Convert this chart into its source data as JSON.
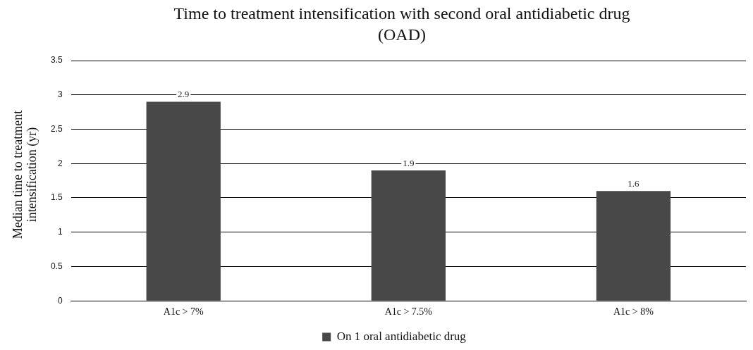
{
  "chart_data": {
    "type": "bar",
    "title": "Time to treatment intensification with second oral antidiabetic drug (OAD)",
    "ylabel": "Median time to treatment intensification (yr)",
    "categories": [
      "A1c > 7%",
      "A1c > 7.5%",
      "A1c > 8%"
    ],
    "series": [
      {
        "name": "On 1 oral antidiabetic drug",
        "color": "#484848",
        "values": [
          2.9,
          1.9,
          1.6
        ]
      }
    ],
    "ylim": [
      0,
      3.5
    ],
    "yticks": [
      0,
      0.5,
      1,
      1.5,
      2,
      2.5,
      3,
      3.5
    ],
    "grid": "y",
    "legend": "bottom",
    "data_labels": true
  }
}
